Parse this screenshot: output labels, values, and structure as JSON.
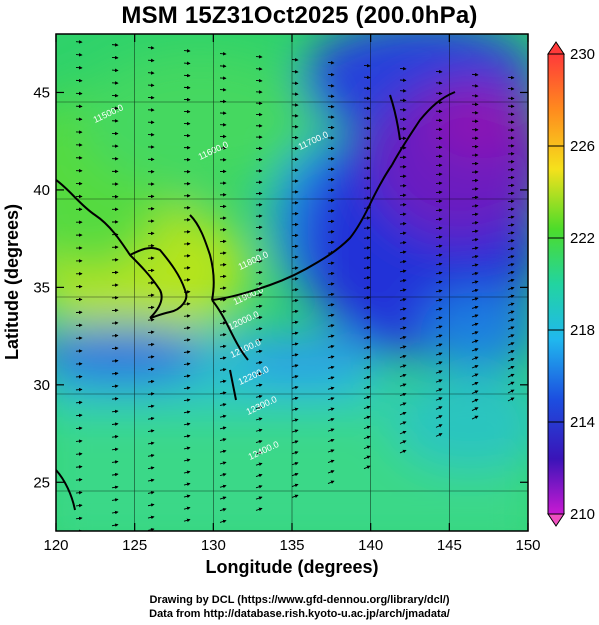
{
  "title": "MSM 15Z31Oct2025 (200.0hPa)",
  "credits": {
    "line1": "Drawing by DCL (https://www.gfd-dennou.org/library/dcl/)",
    "line2": "Data from http://database.rish.kyoto-u.ac.jp/arch/jmadata/"
  },
  "axes": {
    "xlabel": "Longitude (degrees)",
    "ylabel": "Latitude  (degrees)",
    "xticks": [
      "120",
      "125",
      "130",
      "135",
      "140",
      "145",
      "150"
    ],
    "yticks": [
      "25",
      "30",
      "35",
      "40",
      "45"
    ],
    "xlim": [
      120,
      150
    ],
    "ylim": [
      22.5,
      48
    ]
  },
  "colorbar": {
    "ticks": [
      "230",
      "226",
      "222",
      "218",
      "214",
      "210"
    ],
    "range": [
      210,
      230
    ]
  },
  "contour_labels": [
    "11500.0",
    "11600.0",
    "11700.0",
    "11800.0",
    "11900.0",
    "12000.0",
    "12100.0",
    "12200.0",
    "12300.0",
    "12400.0"
  ],
  "colors": {
    "cold": "#7a1fb0",
    "warm": "#f5d21a",
    "mid": "#22cc55",
    "contour": "#ffffff",
    "streamline": "#000000"
  }
}
